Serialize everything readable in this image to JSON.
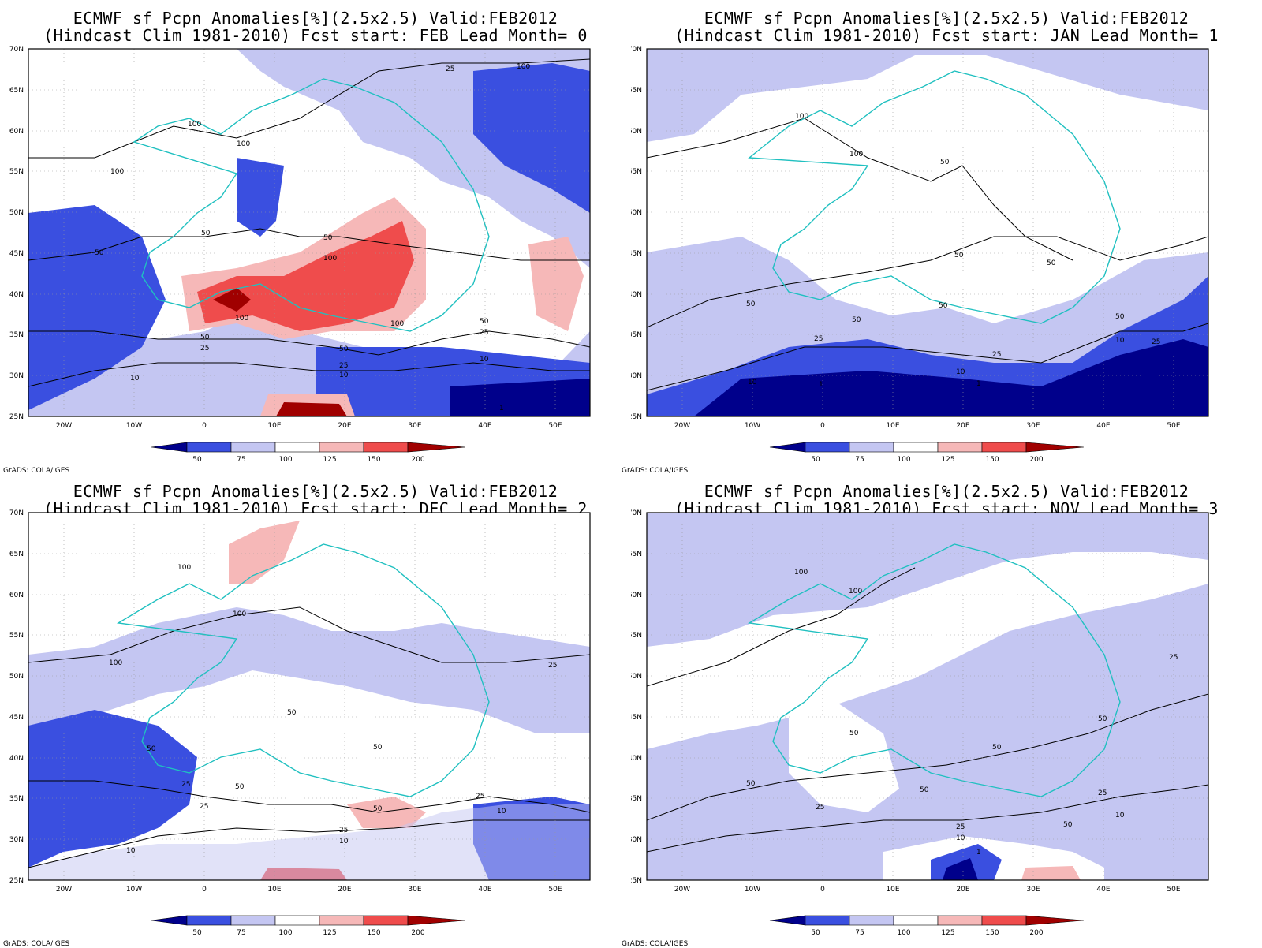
{
  "common": {
    "credit": "GrADS: COLA/IGES",
    "lon_ticks": [
      "20W",
      "10W",
      "0",
      "10E",
      "20E",
      "30E",
      "40E",
      "50E"
    ],
    "lat_ticks": [
      "70N",
      "65N",
      "60N",
      "55N",
      "50N",
      "45N",
      "40N",
      "35N",
      "30N",
      "25N"
    ],
    "colorbar_labels": [
      "50",
      "75",
      "100",
      "125",
      "150",
      "200"
    ],
    "colorbar_colors": [
      "#00008b",
      "#3a4fe0",
      "#c4c6f2",
      "#ffffff",
      "#f6b8b8",
      "#ef4c4c",
      "#a00000"
    ]
  },
  "panels": [
    {
      "title_line1": "ECMWF sf Pcpn Anomalies[%](2.5x2.5) Valid:FEB2012",
      "title_line2": "(Hindcast Clim 1981-2010) Fcst start: FEB  Lead Month= 0",
      "contour_labels": [
        "100",
        "100",
        "100",
        "50",
        "50",
        "100",
        "100",
        "50",
        "50",
        "25",
        "10",
        "25",
        "50",
        "25",
        "10",
        "25",
        "10",
        "100",
        "1",
        "50",
        "100"
      ]
    },
    {
      "title_line1": "ECMWF sf Pcpn Anomalies[%](2.5x2.5) Valid:FEB2012",
      "title_line2": "(Hindcast Clim 1981-2010) Fcst start: JAN  Lead Month= 1",
      "contour_labels": [
        "100",
        "100",
        "50",
        "50",
        "50",
        "50",
        "50",
        "50",
        "25",
        "25",
        "10",
        "10",
        "1",
        "1",
        "50",
        "10",
        "25"
      ]
    },
    {
      "title_line1": "ECMWF sf Pcpn Anomalies[%](2.5x2.5) Valid:FEB2012",
      "title_line2": "(Hindcast Clim 1981-2010) Fcst start: DEC  Lead Month= 2",
      "contour_labels": [
        "100",
        "100",
        "100",
        "50",
        "50",
        "25",
        "25",
        "50",
        "25",
        "10",
        "50",
        "10",
        "25",
        "50",
        "10",
        "25"
      ]
    },
    {
      "title_line1": "ECMWF sf Pcpn Anomalies[%](2.5x2.5) Valid:FEB2012",
      "title_line2": "(Hindcast Clim 1981-2010) Fcst start: NOV  Lead Month= 3",
      "contour_labels": [
        "100",
        "100",
        "25",
        "50",
        "50",
        "50",
        "50",
        "50",
        "25",
        "25",
        "10",
        "1",
        "50",
        "25",
        "10"
      ]
    }
  ]
}
